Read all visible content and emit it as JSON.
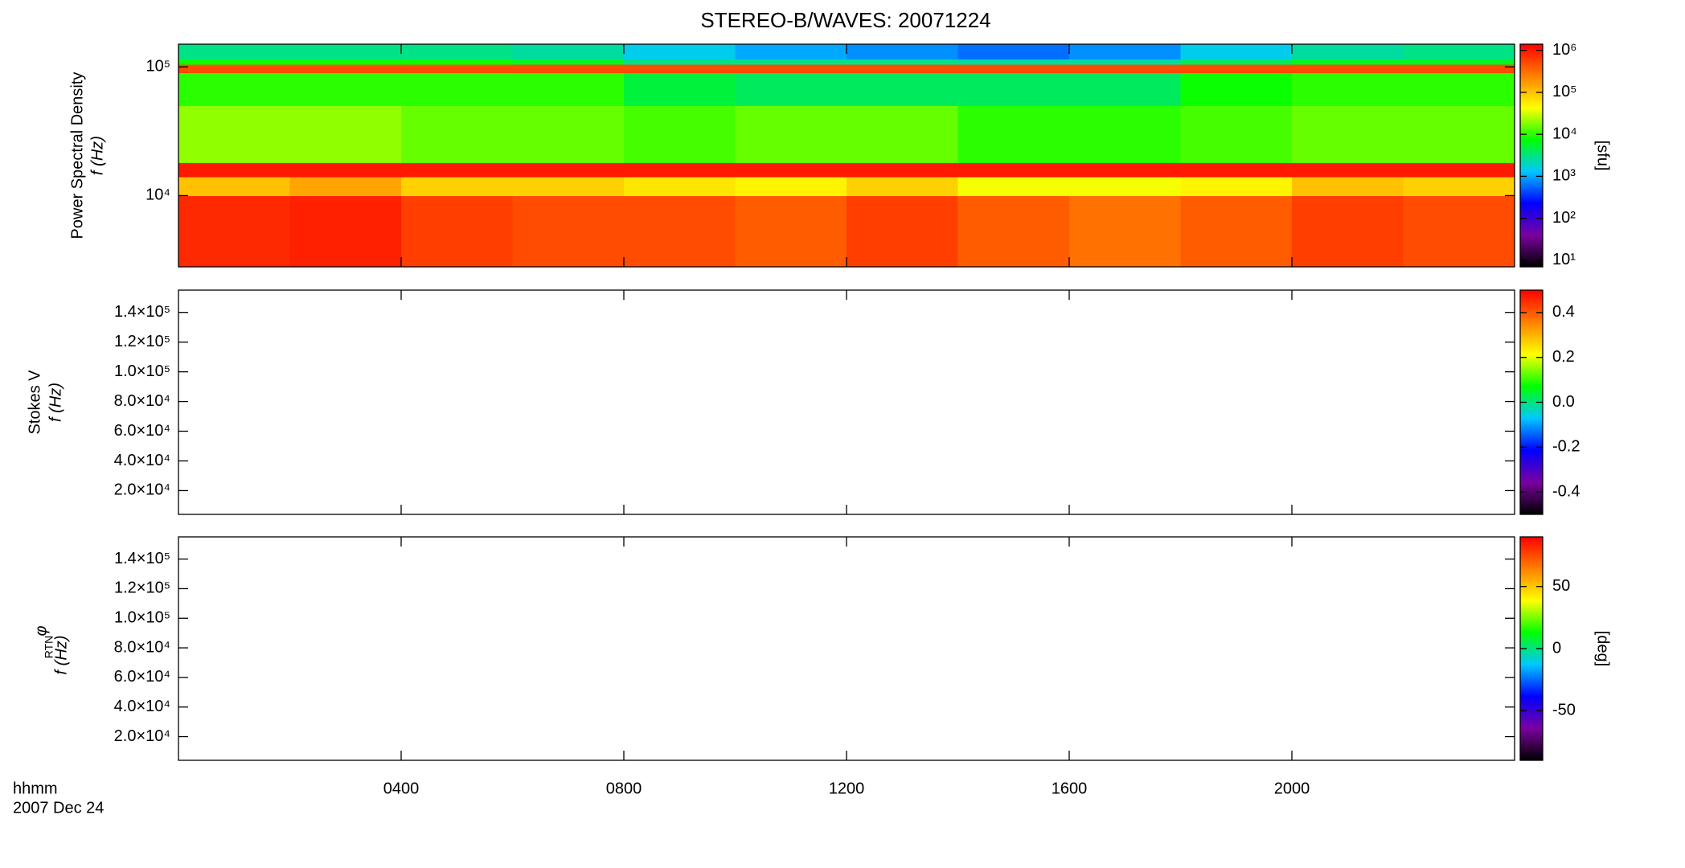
{
  "chart_data": [
    {
      "type": "heatmap",
      "title": "STEREO-B/WAVES: 20071224",
      "ylabel": "Power Spectral Density",
      "ylabel2": "f (Hz)",
      "yscale": "log",
      "ylim": [
        2800,
        150000
      ],
      "yticks": [
        {
          "value": 10000,
          "label": "10⁴"
        },
        {
          "value": 100000,
          "label": "10⁵"
        }
      ],
      "xlim": [
        0,
        24
      ],
      "x_edges": [
        0,
        2,
        4,
        6,
        8,
        10,
        12,
        14,
        16,
        18,
        20,
        22,
        24
      ],
      "y_edges": [
        2800,
        10000,
        14000,
        18000,
        50000,
        90000,
        105000,
        115000,
        150000
      ],
      "z": [
        [
          800000,
          900000,
          600000,
          500000,
          500000,
          400000,
          600000,
          400000,
          300000,
          400000,
          600000,
          500000
        ],
        [
          100000,
          150000,
          80000,
          80000,
          60000,
          50000,
          80000,
          40000,
          40000,
          50000,
          100000,
          80000
        ],
        [
          1000000,
          1000000,
          1000000,
          1000000,
          1000000,
          1000000,
          1000000,
          1000000,
          1000000,
          1000000,
          1000000,
          1000000
        ],
        [
          20000,
          20000,
          15000,
          15000,
          12000,
          15000,
          15000,
          10000,
          10000,
          12000,
          15000,
          15000
        ],
        [
          10000,
          10000,
          10000,
          10000,
          5000,
          4000,
          4000,
          4000,
          4000,
          8000,
          10000,
          10000
        ],
        [
          500000,
          500000,
          500000,
          500000,
          500000,
          500000,
          500000,
          500000,
          500000,
          500000,
          500000,
          500000
        ],
        [
          8000,
          8000,
          8000,
          6000,
          3000,
          3000,
          3000,
          2500,
          2500,
          4000,
          6000,
          6000
        ],
        [
          3000,
          3000,
          3000,
          2500,
          1500,
          1000,
          800,
          600,
          800,
          1500,
          2500,
          3000
        ]
      ],
      "colormap": [
        "#000000",
        "#7a00a0",
        "#0000ff",
        "#00c8ff",
        "#00ff00",
        "#ffff00",
        "#ff8000",
        "#ff0000"
      ],
      "cscale": "log",
      "clim": [
        7,
        1400000
      ],
      "cticks": [
        {
          "value": 10,
          "label": "10¹"
        },
        {
          "value": 100,
          "label": "10²"
        },
        {
          "value": 1000,
          "label": "10³"
        },
        {
          "value": 10000,
          "label": "10⁴"
        },
        {
          "value": 100000,
          "label": "10⁵"
        },
        {
          "value": 1000000,
          "label": "10⁶"
        }
      ],
      "clabel": "[sfu]"
    },
    {
      "type": "heatmap",
      "ylabel": "Stokes V",
      "ylabel2": "f (Hz)",
      "yscale": "linear",
      "ylim": [
        4000,
        155000
      ],
      "yticks": [
        {
          "value": 20000,
          "label": "2.0×10⁴"
        },
        {
          "value": 40000,
          "label": "4.0×10⁴"
        },
        {
          "value": 60000,
          "label": "6.0×10⁴"
        },
        {
          "value": 80000,
          "label": "8.0×10⁴"
        },
        {
          "value": 100000,
          "label": "1.0×10⁵"
        },
        {
          "value": 120000,
          "label": "1.2×10⁵"
        },
        {
          "value": 140000,
          "label": "1.4×10⁵"
        }
      ],
      "xlim": [
        0,
        24
      ],
      "colormap": [
        "#000000",
        "#7a00a0",
        "#0000ff",
        "#00c8ff",
        "#00ff00",
        "#ffff00",
        "#ff8000",
        "#ff0000"
      ],
      "cscale": "linear",
      "clim": [
        -0.5,
        0.5
      ],
      "cticks": [
        -0.4,
        -0.2,
        {
          "value": 0,
          "label": "0.0"
        },
        0.2,
        0.4
      ]
    },
    {
      "type": "heatmap",
      "ylabel_symbol": "φ",
      "ylabel_subscript": "RTN",
      "ylabel2": "f (Hz)",
      "yscale": "linear",
      "ylim": [
        4000,
        155000
      ],
      "yticks": [
        {
          "value": 20000,
          "label": "2.0×10⁴"
        },
        {
          "value": 40000,
          "label": "4.0×10⁴"
        },
        {
          "value": 60000,
          "label": "6.0×10⁴"
        },
        {
          "value": 80000,
          "label": "8.0×10⁴"
        },
        {
          "value": 100000,
          "label": "1.0×10⁵"
        },
        {
          "value": 120000,
          "label": "1.2×10⁵"
        },
        {
          "value": 140000,
          "label": "1.4×10⁵"
        }
      ],
      "xlim": [
        0,
        24
      ],
      "xticks": [
        {
          "value": 4,
          "label": "0400"
        },
        {
          "value": 8,
          "label": "0800"
        },
        {
          "value": 12,
          "label": "1200"
        },
        {
          "value": 16,
          "label": "1600"
        },
        {
          "value": 20,
          "label": "2000"
        }
      ],
      "xlabel": "hhmm",
      "date": "2007 Dec 24",
      "colormap": [
        "#000000",
        "#7a00a0",
        "#0000ff",
        "#00c8ff",
        "#00ff00",
        "#ffff00",
        "#ff8000",
        "#ff0000"
      ],
      "cscale": "linear",
      "clim": [
        -90,
        90
      ],
      "cticks": [
        -50,
        0,
        50
      ],
      "clabel": "[deg]"
    }
  ]
}
